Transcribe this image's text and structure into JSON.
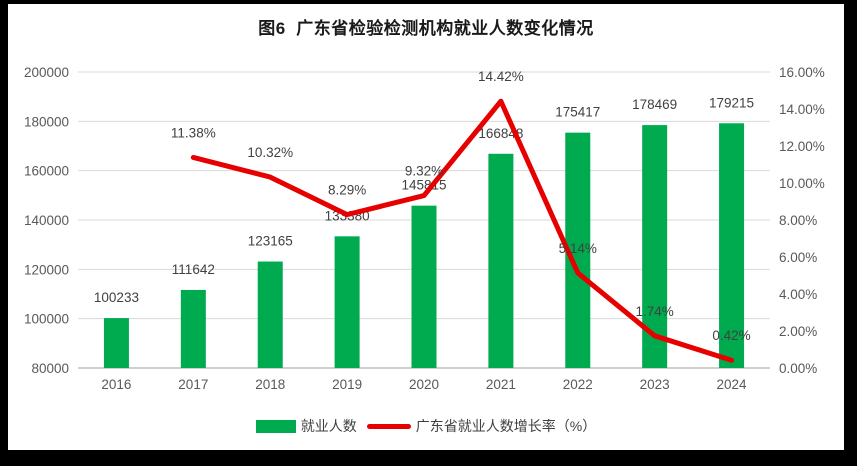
{
  "title": "图6  广东省检验检测机构就业人数变化情况",
  "colors": {
    "bar": "#00AB50",
    "line": "#E60000",
    "gridline": "#D9D9D9",
    "axis_line": "#BFBFBF",
    "tick_text": "#595959",
    "data_label_text": "#404040",
    "frame_background": "#000000",
    "panel_background": "#ffffff"
  },
  "legend": [
    {
      "label": "就业人数",
      "type": "bar",
      "color": "#00AB50"
    },
    {
      "label": "广东省就业人数增长率（%）",
      "type": "line",
      "color": "#E60000"
    }
  ],
  "chart_data": {
    "type": "bar+line",
    "title": "图6  广东省检验检测机构就业人数变化情况",
    "categories": [
      "2016",
      "2017",
      "2018",
      "2019",
      "2020",
      "2021",
      "2022",
      "2023",
      "2024"
    ],
    "series": [
      {
        "name": "就业人数",
        "type": "bar",
        "axis": "left",
        "color": "#00AB50",
        "values": [
          100233,
          111642,
          123165,
          133380,
          145815,
          166848,
          175417,
          178469,
          179215
        ],
        "labels": [
          "100233",
          "111642",
          "123165",
          "133380",
          "145815",
          "166848",
          "175417",
          "178469",
          "179215"
        ]
      },
      {
        "name": "广东省就业人数增长率（%）",
        "type": "line",
        "axis": "right",
        "color": "#E60000",
        "values": [
          null,
          11.38,
          10.32,
          8.29,
          9.32,
          14.42,
          5.14,
          1.74,
          0.42
        ],
        "labels": [
          null,
          "11.38%",
          "10.32%",
          "8.29%",
          "9.32%",
          "14.42%",
          "5.14%",
          "1.74%",
          "0.42%"
        ]
      }
    ],
    "left_axis": {
      "min": 80000,
      "max": 200000,
      "step": 20000,
      "tick_labels": [
        "80000",
        "100000",
        "120000",
        "140000",
        "160000",
        "180000",
        "200000"
      ]
    },
    "right_axis": {
      "min": 0,
      "max": 16,
      "step": 2,
      "tick_labels": [
        "0.00%",
        "2.00%",
        "4.00%",
        "6.00%",
        "8.00%",
        "10.00%",
        "12.00%",
        "14.00%",
        "16.00%"
      ]
    },
    "grid": "horizontal",
    "legend_position": "bottom"
  }
}
